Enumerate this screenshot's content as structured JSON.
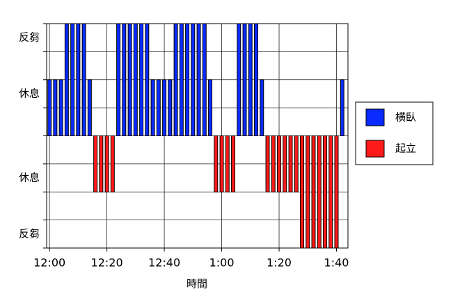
{
  "chart_data": {
    "type": "bar",
    "x_label": "時間",
    "x": [
      0,
      2,
      4,
      6,
      8,
      10,
      12,
      14,
      16,
      18,
      20,
      22,
      24,
      26,
      28,
      30,
      32,
      34,
      36,
      38,
      40,
      42,
      44,
      46,
      48,
      50,
      52,
      54,
      56,
      58,
      60,
      62,
      64,
      66,
      68,
      70,
      72,
      74,
      76,
      78,
      80,
      82,
      84,
      86,
      88,
      90,
      92,
      94,
      96,
      98,
      100,
      102
    ],
    "series": [
      {
        "name": "横臥",
        "color": "#0a2bff",
        "values": [
          2,
          2,
          2,
          4,
          4,
          4,
          4,
          2,
          null,
          null,
          null,
          null,
          4,
          4,
          4,
          4,
          4,
          4,
          2,
          2,
          2,
          2,
          4,
          4,
          4,
          4,
          4,
          4,
          2,
          null,
          null,
          null,
          null,
          4,
          4,
          4,
          4,
          2,
          null,
          null,
          null,
          null,
          null,
          null,
          null,
          null,
          null,
          null,
          null,
          null,
          null,
          2
        ]
      },
      {
        "name": "起立",
        "color": "#ff1a1a",
        "values": [
          null,
          null,
          null,
          null,
          null,
          null,
          null,
          null,
          -2,
          -2,
          -2,
          -2,
          null,
          null,
          null,
          null,
          null,
          null,
          null,
          null,
          null,
          null,
          null,
          null,
          null,
          null,
          null,
          null,
          null,
          -2,
          -2,
          -2,
          -2,
          null,
          null,
          null,
          null,
          null,
          -2,
          -2,
          -2,
          -2,
          -2,
          -2,
          -4,
          -4,
          -4,
          -4,
          -4,
          -4,
          -4,
          null
        ]
      }
    ],
    "xlim": [
      -1,
      104
    ],
    "xticks": [
      {
        "value": 0,
        "label": "12:00"
      },
      {
        "value": 20,
        "label": "12:20"
      },
      {
        "value": 40,
        "label": "12:40"
      },
      {
        "value": 60,
        "label": "1:00"
      },
      {
        "value": 80,
        "label": "1:20"
      },
      {
        "value": 100,
        "label": "1:40"
      }
    ],
    "ylim": [
      -4,
      4
    ],
    "yticks": [
      {
        "value": 3.5,
        "label": "反芻"
      },
      {
        "value": 1.5,
        "label": "休息"
      },
      {
        "value": -1.5,
        "label": "休息"
      },
      {
        "value": -3.5,
        "label": "反芻"
      }
    ],
    "minor_yticks": [
      -4,
      -3,
      -2,
      -1,
      0,
      1,
      2,
      3,
      4
    ],
    "grid": true,
    "legend": "right"
  }
}
